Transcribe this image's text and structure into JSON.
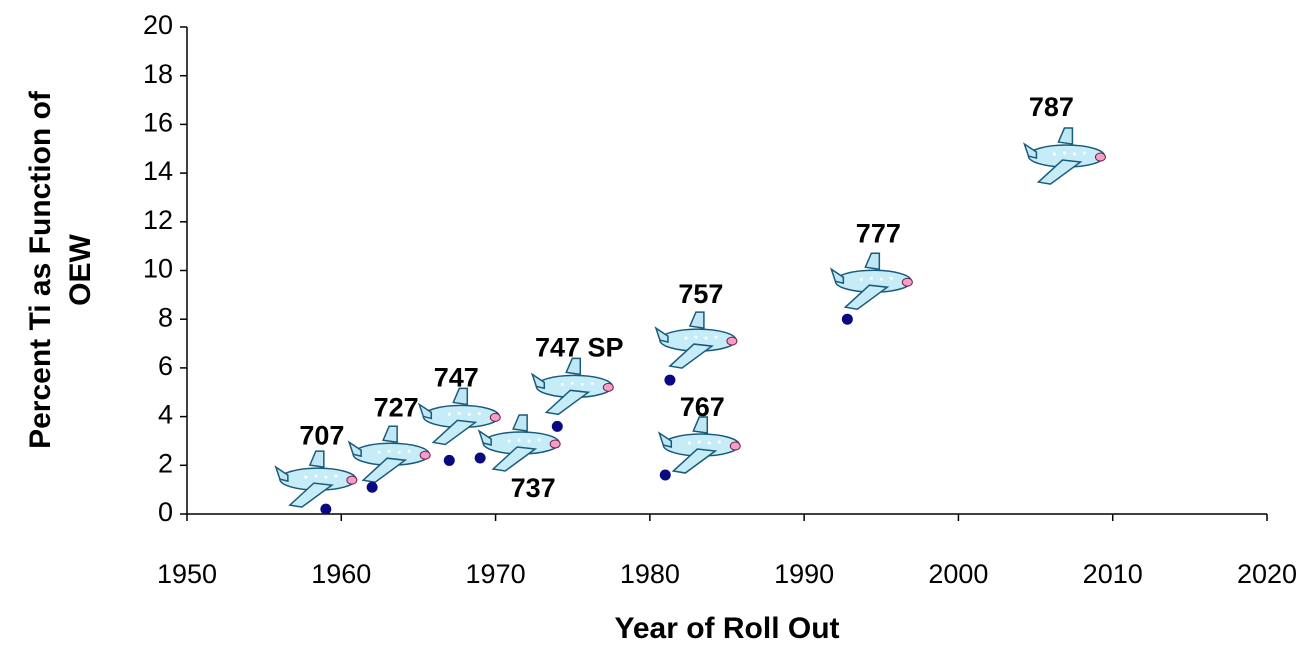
{
  "chart_data": {
    "type": "scatter",
    "x_label": "Year of Roll Out",
    "y_label": [
      "Percent Ti as Function of",
      "OEW"
    ],
    "xlim": [
      1950,
      2020
    ],
    "xticks": [
      1950,
      1960,
      1970,
      1980,
      1990,
      2000,
      2010,
      2020
    ],
    "ylim": [
      0,
      20
    ],
    "yticks": [
      0,
      2,
      4,
      6,
      8,
      10,
      12,
      14,
      16,
      18,
      20
    ],
    "color": "#0a0a80",
    "point_labels": [
      "707",
      "727",
      "747",
      "737",
      "747 SP",
      "767",
      "757",
      "777",
      "787"
    ],
    "x": [
      1959,
      1962,
      1967,
      1969,
      1974,
      1981,
      1981.3,
      1992.8,
      2007
    ],
    "values": [
      0.2,
      1.1,
      2.2,
      2.3,
      3.6,
      1.6,
      5.5,
      8,
      14.7
    ],
    "dot_shown": [
      true,
      true,
      true,
      true,
      true,
      true,
      true,
      true,
      false
    ]
  }
}
